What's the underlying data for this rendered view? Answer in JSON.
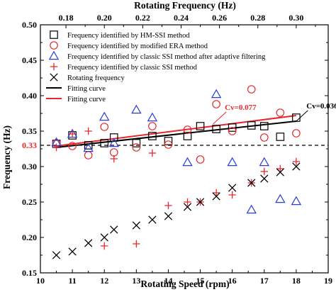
{
  "chart_data": {
    "type": "scatter",
    "xlabel": "Rotating Speed (rpm)",
    "ylabel": "Frequency (Hz)",
    "top_xlabel": "Rotating Frequency (Hz)",
    "xlim": [
      10,
      19
    ],
    "ylim": [
      0.15,
      0.5
    ],
    "top_xlim": [
      0.16667,
      0.31667
    ],
    "x_ticks": [
      "10",
      "11",
      "12",
      "13",
      "14",
      "15",
      "16",
      "17",
      "18",
      "19"
    ],
    "y_ticks": [
      "0.15",
      "0.20",
      "0.25",
      "0.30",
      "0.35",
      "0.40",
      "0.45",
      "0.50"
    ],
    "top_ticks": [
      "0.18",
      "0.20",
      "0.22",
      "0.24",
      "0.26",
      "0.28",
      "0.30"
    ],
    "grid": false,
    "legend_position": "top-left",
    "reference_line": {
      "y": 0.33,
      "label": "0.33",
      "color": "#000000"
    },
    "series": [
      {
        "name": "Frequency identified by HM-SSI method",
        "marker": "square",
        "color": "#000000",
        "points": [
          [
            10.5,
            0.332
          ],
          [
            11,
            0.344
          ],
          [
            11.5,
            0.33
          ],
          [
            12,
            0.333
          ],
          [
            12.3,
            0.341
          ],
          [
            13,
            0.333
          ],
          [
            13.5,
            0.343
          ],
          [
            14,
            0.336
          ],
          [
            14.6,
            0.343
          ],
          [
            15,
            0.357
          ],
          [
            15.5,
            0.353
          ],
          [
            16,
            0.355
          ],
          [
            16.6,
            0.358
          ],
          [
            17,
            0.357
          ],
          [
            17.5,
            0.342
          ],
          [
            18,
            0.369
          ]
        ]
      },
      {
        "name": "Frequency identified by modified ERA method",
        "marker": "circle",
        "color": "#e8272b",
        "points": [
          [
            10.5,
            0.333
          ],
          [
            11,
            0.329
          ],
          [
            11.5,
            0.316
          ],
          [
            12,
            0.356
          ],
          [
            12.3,
            0.32
          ],
          [
            13,
            0.327
          ],
          [
            13.5,
            0.357
          ],
          [
            14,
            0.331
          ],
          [
            14.6,
            0.352
          ],
          [
            15,
            0.31
          ],
          [
            15.5,
            0.388
          ],
          [
            16,
            0.35
          ],
          [
            16.6,
            0.409
          ],
          [
            17,
            0.341
          ],
          [
            17.5,
            0.376
          ],
          [
            18,
            0.347
          ]
        ]
      },
      {
        "name": "Frequency identified by classic SSI method after adaptive filtering",
        "marker": "triangle",
        "color": "#2a3fd8",
        "points": [
          [
            10.5,
            0.334
          ],
          [
            11,
            0.346
          ],
          [
            11.5,
            0.326
          ],
          [
            12,
            0.37
          ],
          [
            12.3,
            0.333
          ],
          [
            13,
            0.38
          ],
          [
            13.5,
            0.369
          ],
          [
            14.6,
            0.306
          ],
          [
            15.5,
            0.402
          ],
          [
            16,
            0.306
          ],
          [
            16.6,
            0.239
          ],
          [
            17,
            0.306
          ],
          [
            17.5,
            0.254
          ],
          [
            18,
            0.251
          ]
        ]
      },
      {
        "name": "Frequency identified by classic SSI method",
        "marker": "plus",
        "color": "#e8272b",
        "points": [
          [
            10.5,
            0.327
          ],
          [
            11,
            0.346
          ],
          [
            11.5,
            0.35
          ],
          [
            12,
            0.188
          ],
          [
            12.3,
            0.311
          ],
          [
            13,
            0.191
          ],
          [
            13.5,
            0.319
          ],
          [
            14,
            0.245
          ],
          [
            14.6,
            0.25
          ],
          [
            15,
            0.25
          ],
          [
            15.5,
            0.263
          ],
          [
            16,
            0.26
          ],
          [
            16.6,
            0.277
          ],
          [
            17,
            0.293
          ],
          [
            17.5,
            0.297
          ],
          [
            18,
            0.307
          ]
        ]
      },
      {
        "name": "Rotating frequency",
        "marker": "x",
        "color": "#000000",
        "points": [
          [
            10.5,
            0.175
          ],
          [
            11,
            0.18
          ],
          [
            11.5,
            0.192
          ],
          [
            12,
            0.2
          ],
          [
            12.3,
            0.211
          ],
          [
            13,
            0.217
          ],
          [
            13.5,
            0.225
          ],
          [
            14,
            0.23
          ],
          [
            14.6,
            0.243
          ],
          [
            15,
            0.25
          ],
          [
            15.5,
            0.258
          ],
          [
            16,
            0.27
          ],
          [
            16.6,
            0.277
          ],
          [
            17,
            0.283
          ],
          [
            17.5,
            0.292
          ],
          [
            18,
            0.3
          ]
        ]
      },
      {
        "name": "Fitting curve",
        "type": "line",
        "color": "#000000",
        "points": [
          [
            10.5,
            0.327
          ],
          [
            18,
            0.364
          ]
        ]
      },
      {
        "name": "Fitting curve",
        "type": "line",
        "color": "#e8272b",
        "points": [
          [
            10.5,
            0.329
          ],
          [
            18,
            0.372
          ]
        ]
      }
    ],
    "annotations": [
      {
        "text": "Cv=0.036",
        "x": 18.45,
        "y": 0.382,
        "color": "#000000",
        "arrow_to": [
          18.0,
          0.364
        ]
      },
      {
        "text": "Cv=0.077",
        "x": 15.9,
        "y": 0.38,
        "color": "#e8272b",
        "arrow_to": [
          15.4,
          0.36
        ]
      }
    ]
  }
}
